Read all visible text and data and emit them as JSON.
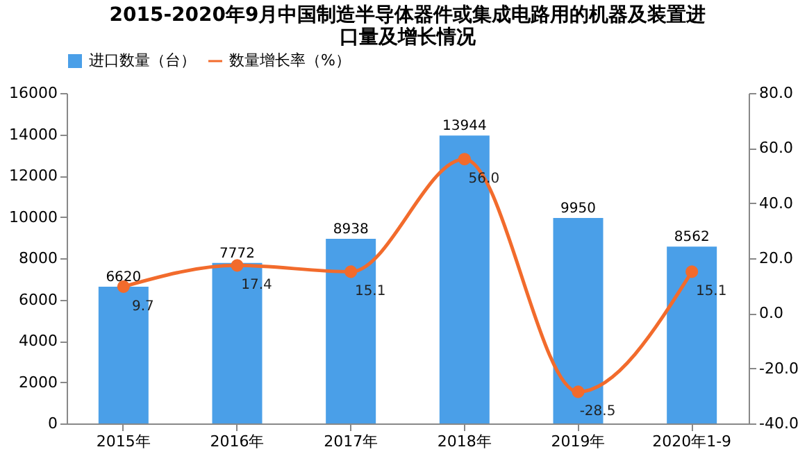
{
  "chart_data": {
    "type": "bar",
    "title": "2015-2020年9月中国制造半导体器件或集成电路用的机器及装置进口量及增长情况",
    "categories": [
      "2015年",
      "2016年",
      "2017年",
      "2018年",
      "2019年",
      "2020年1-9"
    ],
    "series": [
      {
        "name": "进口数量（台）",
        "color": "#4a9fe8",
        "values": [
          6620,
          7772,
          8938,
          13944,
          9950,
          8562
        ],
        "value_labels": [
          "6620",
          "7772",
          "8938",
          "13944",
          "9950",
          "8562"
        ]
      },
      {
        "name": "数量增长率（%）",
        "type": "line",
        "axis": "y2",
        "color": "#f26b2c",
        "values": [
          9.7,
          17.4,
          15.1,
          56.0,
          -28.5,
          15.1
        ],
        "value_labels": [
          "9.7",
          "17.4",
          "15.1",
          "56.0",
          "-28.5",
          "15.1"
        ]
      }
    ],
    "ylim": [
      0,
      16000
    ],
    "yticks": [
      0,
      2000,
      4000,
      6000,
      8000,
      10000,
      12000,
      14000,
      16000
    ],
    "y2lim": [
      -40,
      80
    ],
    "y2ticks": [
      {
        "value": -40,
        "label": "-40.0"
      },
      {
        "value": -20,
        "label": "-20.0"
      },
      {
        "value": 0,
        "label": "0.0"
      },
      {
        "value": 20,
        "label": "20.0"
      },
      {
        "value": 40,
        "label": "40.0"
      },
      {
        "value": 60,
        "label": "60.0"
      },
      {
        "value": 80,
        "label": "80.0"
      }
    ],
    "legend": "top",
    "marker": "circle"
  }
}
